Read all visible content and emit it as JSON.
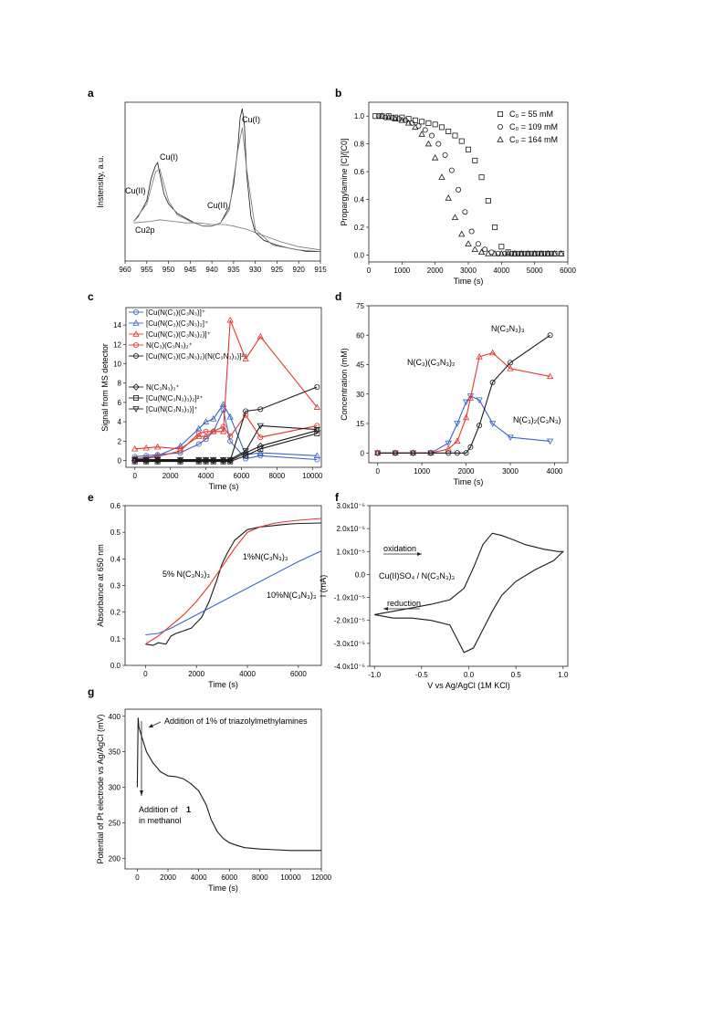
{
  "colors": {
    "black": "#1a1a1a",
    "blue": "#3b64c8",
    "red": "#e2362c",
    "gray": "#777777"
  },
  "chart_data": [
    {
      "panel": "a",
      "type": "line",
      "xlabel": "",
      "ylabel": "Instensity, a.u.",
      "xlim": [
        960,
        915
      ],
      "ylim": [
        0,
        100
      ],
      "xticks": [
        "960",
        "955",
        "950",
        "945",
        "940",
        "935",
        "930",
        "925",
        "920",
        "915"
      ],
      "annotations": [
        "Cu(I)",
        "Cu(II)",
        "Cu(II)",
        "Cu(I)",
        "Cu2p"
      ],
      "series": [
        {
          "x": [
            958,
            957,
            955,
            954,
            953,
            952.5,
            952,
            951,
            950,
            948,
            946,
            944,
            942,
            940,
            938,
            936,
            935,
            934,
            933.5,
            933,
            932.5,
            932,
            931,
            930,
            928,
            925,
            922,
            918,
            915
          ],
          "values": [
            25,
            28,
            38,
            52,
            60,
            62,
            55,
            42,
            36,
            30,
            27,
            24,
            22,
            22,
            24,
            34,
            48,
            72,
            90,
            96,
            85,
            55,
            28,
            18,
            13,
            10,
            8,
            6,
            6
          ]
        },
        {
          "x": [
            958,
            955,
            953,
            952,
            950,
            948,
            945,
            942,
            940,
            938,
            936,
            934,
            933,
            932,
            930,
            926,
            920,
            915
          ],
          "values": [
            25,
            36,
            56,
            58,
            38,
            29,
            25,
            22,
            22,
            24,
            32,
            70,
            84,
            58,
            20,
            10,
            7,
            6
          ]
        },
        {
          "x": [
            958,
            954,
            952,
            949,
            946,
            943,
            940,
            937,
            935,
            932,
            928,
            924,
            920,
            915
          ],
          "values": [
            24,
            25,
            26,
            25,
            24,
            24,
            23,
            23,
            22,
            20,
            16,
            12,
            9,
            7
          ]
        }
      ]
    },
    {
      "panel": "b",
      "type": "scatter",
      "xlabel": "Time (s)",
      "ylabel": "Propargylamine [C]/[C0]",
      "xlim": [
        0,
        6000
      ],
      "ylim": [
        -0.05,
        1.1
      ],
      "xticks": [
        "0",
        "1000",
        "2000",
        "3000",
        "4000",
        "5000",
        "6000"
      ],
      "yticks": [
        "0.0",
        "0.2",
        "0.4",
        "0.6",
        "0.8",
        "1.0"
      ],
      "series": [
        {
          "name": "C₀ = 55 mM",
          "marker": "square",
          "x": [
            200,
            400,
            600,
            800,
            1000,
            1200,
            1400,
            1600,
            1800,
            2000,
            2200,
            2400,
            2600,
            2800,
            3000,
            3200,
            3400,
            3600,
            3800,
            4000,
            4200,
            4400,
            4600,
            4800,
            5000,
            5200,
            5400,
            5600,
            5800
          ],
          "values": [
            1.0,
            1.0,
            1.0,
            0.99,
            0.99,
            0.98,
            0.97,
            0.96,
            0.95,
            0.94,
            0.92,
            0.89,
            0.86,
            0.82,
            0.76,
            0.68,
            0.56,
            0.39,
            0.2,
            0.06,
            0.02,
            0.01,
            0.01,
            0.01,
            0.01,
            0.01,
            0.01,
            0.01,
            0.01
          ]
        },
        {
          "name": "C₀ = 109 mM",
          "marker": "circle",
          "x": [
            300,
            500,
            700,
            900,
            1100,
            1300,
            1500,
            1700,
            1900,
            2100,
            2300,
            2500,
            2700,
            2900,
            3100,
            3300,
            3500,
            3700,
            3900,
            4100,
            4300,
            4500,
            4700,
            4900,
            5100,
            5300,
            5500
          ],
          "values": [
            1.0,
            0.99,
            0.99,
            0.98,
            0.97,
            0.95,
            0.93,
            0.9,
            0.86,
            0.8,
            0.72,
            0.61,
            0.47,
            0.31,
            0.17,
            0.08,
            0.04,
            0.02,
            0.01,
            0.01,
            0.01,
            0.01,
            0.01,
            0.01,
            0.01,
            0.01,
            0.01
          ]
        },
        {
          "name": "C₀ = 164 mM",
          "marker": "triangle",
          "x": [
            400,
            600,
            800,
            1000,
            1200,
            1400,
            1600,
            1800,
            2000,
            2200,
            2400,
            2600,
            2800,
            3000,
            3200,
            3400,
            3600,
            3800,
            4000,
            4200,
            4400,
            4600,
            4800,
            5000,
            5200,
            5400,
            5600,
            5800
          ],
          "values": [
            1.0,
            0.99,
            0.98,
            0.97,
            0.95,
            0.92,
            0.87,
            0.8,
            0.7,
            0.56,
            0.41,
            0.27,
            0.15,
            0.08,
            0.04,
            0.02,
            0.01,
            0.01,
            0.01,
            0.01,
            0.01,
            0.01,
            0.01,
            0.01,
            0.01,
            0.01,
            0.01,
            0.01
          ]
        }
      ]
    },
    {
      "panel": "c",
      "type": "line",
      "xlabel": "Time (s)",
      "ylabel": "Signal from MS detector",
      "xlim": [
        -500,
        10500
      ],
      "ylim": [
        -0.7,
        15.8
      ],
      "xticks": [
        "0",
        "2000",
        "4000",
        "6000",
        "8000",
        "10000"
      ],
      "yticks": [
        "0",
        "2",
        "4",
        "6",
        "8",
        "10",
        "12",
        "14"
      ],
      "x": [
        0,
        640,
        1280,
        2560,
        3600,
        4000,
        4420,
        4980,
        5370,
        6240,
        7070,
        10260
      ],
      "series": [
        {
          "name": "[Cu(N(C₃)(C₃N₃)]⁺",
          "color": "blue",
          "marker": "circle",
          "values": [
            0.4,
            0.5,
            0.6,
            0.8,
            1.7,
            2.2,
            3.0,
            5.2,
            2.0,
            0.2,
            0.5,
            0.1
          ]
        },
        {
          "name": "[Cu(N(C₃)(C₃N₃)₂]⁺",
          "color": "blue",
          "marker": "triangle",
          "values": [
            0.2,
            0.3,
            0.5,
            1.5,
            3.3,
            4.0,
            4.3,
            5.8,
            4.5,
            0.6,
            0.8,
            0.5
          ]
        },
        {
          "name": "[Cu(N(C₃)(C₃N₃)₂)]⁺",
          "color": "red",
          "marker": "triangle",
          "values": [
            1.2,
            1.3,
            1.4,
            1.2,
            2.5,
            2.5,
            3.0,
            3.0,
            14.5,
            10.5,
            12.8,
            5.5
          ]
        },
        {
          "name": "N(C₃)(C₃N₃)₂⁺",
          "color": "red",
          "marker": "circle",
          "values": [
            0.2,
            0.2,
            0.4,
            1.0,
            2.8,
            3.0,
            3.0,
            3.5,
            2.5,
            4.7,
            2.4,
            3.6
          ]
        },
        {
          "name": "[Cu(N(C₃)(C₃N₃)₂)(N(C₃N₃)₃)]²⁺",
          "color": "black",
          "marker": "circle",
          "values": [
            0.0,
            0.0,
            0.0,
            0.0,
            0.0,
            0.0,
            0.0,
            0.0,
            0.0,
            5.1,
            5.3,
            7.6
          ]
        },
        {
          "name": "N(C₃N₃)₃⁺",
          "color": "black",
          "marker": "diamond",
          "values": [
            0.0,
            0.0,
            0.0,
            0.0,
            0.0,
            0.0,
            0.0,
            0.0,
            0.0,
            0.8,
            1.5,
            3.1
          ]
        },
        {
          "name": "[Cu(N(C₃N₃)₃)₂]²⁺",
          "color": "black",
          "marker": "square",
          "values": [
            -0.1,
            -0.1,
            -0.1,
            -0.1,
            -0.1,
            -0.1,
            -0.1,
            -0.1,
            -0.1,
            0.5,
            1.2,
            2.8
          ]
        },
        {
          "name": "[Cu(N(C₃N₃)₃)]⁺",
          "color": "black",
          "marker": "triangle-down",
          "values": [
            0.1,
            0.1,
            0.1,
            0.1,
            0.1,
            0.1,
            0.1,
            0.1,
            0.1,
            1.0,
            3.6,
            3.2
          ]
        }
      ]
    },
    {
      "panel": "d",
      "type": "line",
      "xlabel": "Time (s)",
      "ylabel": "Concentration (mM)",
      "xlim": [
        -200,
        4300
      ],
      "ylim": [
        -5,
        75
      ],
      "xticks": [
        "0",
        "1000",
        "2000",
        "3000",
        "4000"
      ],
      "yticks": [
        "0",
        "15",
        "30",
        "45",
        "60",
        "75"
      ],
      "annotations": [
        "N(C₃N₃)₃",
        "N(C₃)(C₃N₃)₂",
        "N(C₃)₂(C₃N₃)"
      ],
      "series": [
        {
          "name": "N(C₃)₂(C₃N₃)",
          "color": "blue",
          "marker": "triangle-down",
          "x": [
            0,
            400,
            800,
            1200,
            1600,
            1800,
            2000,
            2100,
            2300,
            2600,
            3000,
            3900
          ],
          "values": [
            0,
            0,
            0,
            0,
            5,
            15,
            26,
            29,
            27,
            15,
            8,
            6
          ]
        },
        {
          "name": "N(C₃)(C₃N₃)₂",
          "color": "red",
          "marker": "triangle",
          "x": [
            0,
            400,
            800,
            1200,
            1600,
            1800,
            2000,
            2100,
            2300,
            2600,
            3000,
            3900
          ],
          "values": [
            0,
            0,
            0,
            0,
            2,
            6,
            18,
            28,
            49,
            51,
            43,
            39
          ]
        },
        {
          "name": "N(C₃N₃)₃",
          "color": "black",
          "marker": "circle",
          "x": [
            0,
            400,
            800,
            1200,
            1600,
            1800,
            2000,
            2100,
            2300,
            2600,
            3000,
            3900
          ],
          "values": [
            0,
            0,
            0,
            0,
            0,
            0,
            0,
            3,
            14,
            36,
            46,
            60
          ]
        }
      ]
    },
    {
      "panel": "e",
      "type": "line",
      "xlabel": "Time (s)",
      "ylabel": "Absorbance at 650 nm",
      "xlim": [
        -800,
        6900
      ],
      "ylim": [
        0,
        0.6
      ],
      "xticks": [
        "0",
        "2000",
        "4000",
        "6000"
      ],
      "yticks": [
        "0.0",
        "0.1",
        "0.2",
        "0.3",
        "0.4",
        "0.5",
        "0.6"
      ],
      "annotations": [
        "5% N(C₃N₃)₃",
        "1%N(C₃N₃)₃",
        "10%N(C₃N₃)₃"
      ],
      "series": [
        {
          "name": "1%N(C₃N₃)₃",
          "color": "black",
          "x": [
            0,
            300,
            500,
            800,
            1000,
            1200,
            1500,
            1800,
            2000,
            2200,
            2500,
            2800,
            3000,
            3200,
            3500,
            4000,
            4500,
            5000,
            5500,
            6000,
            6900
          ],
          "values": [
            0.08,
            0.075,
            0.085,
            0.08,
            0.11,
            0.12,
            0.13,
            0.14,
            0.16,
            0.18,
            0.24,
            0.32,
            0.38,
            0.42,
            0.47,
            0.51,
            0.52,
            0.525,
            0.53,
            0.533,
            0.535
          ]
        },
        {
          "name": "5% N(C₃N₃)₃",
          "color": "red",
          "x": [
            0,
            500,
            1000,
            1500,
            2000,
            2500,
            3000,
            3500,
            4000,
            4500,
            5000,
            5500,
            6000,
            6900
          ],
          "values": [
            0.08,
            0.11,
            0.15,
            0.19,
            0.24,
            0.3,
            0.37,
            0.44,
            0.5,
            0.52,
            0.533,
            0.54,
            0.545,
            0.552
          ]
        },
        {
          "name": "10%N(C₃N₃)₃",
          "color": "blue",
          "x": [
            0,
            500,
            1000,
            2000,
            3000,
            4000,
            5000,
            6000,
            6900
          ],
          "values": [
            0.115,
            0.12,
            0.14,
            0.19,
            0.24,
            0.29,
            0.34,
            0.39,
            0.43
          ]
        }
      ]
    },
    {
      "panel": "f",
      "type": "line",
      "xlabel": "V vs Ag/AgCl (1M KCl)",
      "ylabel": "I (mA)",
      "xlim": [
        -1.05,
        1.05
      ],
      "ylim": [
        -4e-05,
        3e-05
      ],
      "xticks": [
        "-1.0",
        "-0.5",
        "0.0",
        "0.5",
        "1.0"
      ],
      "yticks": [
        "-4.0x10⁻⁵",
        "-3.0x10⁻⁵",
        "-2.0x10⁻⁵",
        "-1.0x10⁻⁵",
        "0.0",
        "1.0x10⁻⁵",
        "2.0x10⁻⁵",
        "3.0x10⁻⁵"
      ],
      "annotations": [
        "oxidation",
        "reduction",
        "Cu(II)SO₄ / N(C₃N₃)₃"
      ],
      "series": [
        {
          "name": "",
          "color": "black",
          "x": [
            -1.0,
            -0.8,
            -0.6,
            -0.4,
            -0.2,
            -0.05,
            0.05,
            0.15,
            0.25,
            0.35,
            0.45,
            0.6,
            0.8,
            0.95,
            1.0,
            0.9,
            0.7,
            0.5,
            0.35,
            0.25,
            0.15,
            0.05,
            -0.05,
            -0.1,
            -0.2,
            -0.4,
            -0.6,
            -0.8,
            -1.0
          ],
          "values": [
            -1.75e-05,
            -1.6e-05,
            -1.45e-05,
            -1.3e-05,
            -1.1e-05,
            -6e-06,
            3e-06,
            1.3e-05,
            1.8e-05,
            1.7e-05,
            1.55e-05,
            1.3e-05,
            1.1e-05,
            1e-05,
            1e-05,
            6e-06,
            2e-06,
            -3e-06,
            -9e-06,
            -1.6e-05,
            -2.4e-05,
            -3.2e-05,
            -3.4e-05,
            -3e-05,
            -2.2e-05,
            -2e-05,
            -1.9e-05,
            -1.9e-05,
            -1.75e-05
          ]
        }
      ]
    },
    {
      "panel": "g",
      "type": "line",
      "xlabel": "Time (s)",
      "ylabel": "Potential of Pt electrode  vs Ag/AgCl  (mV)",
      "xlim": [
        -800,
        12000
      ],
      "ylim": [
        185,
        410
      ],
      "xticks": [
        "0",
        "2000",
        "4000",
        "6000",
        "8000",
        "10000",
        "12000"
      ],
      "yticks": [
        "200",
        "250",
        "300",
        "350",
        "400"
      ],
      "annotations": [
        "Addition of 1% of triazolylmethylamines",
        "Addition of ",
        "1",
        "in methanol"
      ],
      "series": [
        {
          "name": "",
          "color": "black",
          "x": [
            0,
            50,
            100,
            300,
            600,
            1000,
            1500,
            2000,
            2500,
            3000,
            3500,
            4000,
            4500,
            4800,
            5200,
            5600,
            6000,
            6500,
            7000,
            8000,
            9000,
            10000,
            11000,
            12000
          ],
          "values": [
            300,
            398,
            385,
            370,
            350,
            335,
            322,
            316,
            315,
            312,
            305,
            295,
            275,
            255,
            238,
            228,
            222,
            218,
            215,
            213,
            212,
            211,
            211,
            211
          ]
        }
      ]
    }
  ]
}
